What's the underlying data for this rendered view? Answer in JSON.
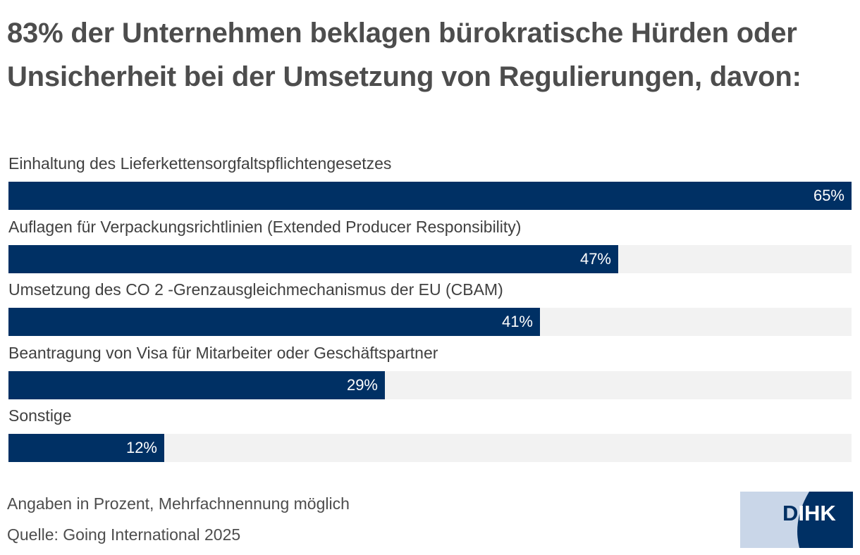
{
  "header": {
    "title": "83% der Unternehmen beklagen bürokratische Hürden oder Unsicherheit bei der Umsetzung von Regulierungen, davon:"
  },
  "chart_data": {
    "type": "bar",
    "orientation": "horizontal",
    "title": "83% der Unternehmen beklagen bürokratische Hürden oder Unsicherheit bei der Umsetzung von Regulierungen, davon:",
    "xlabel": "",
    "ylabel": "",
    "unit": "%",
    "xlim": [
      0,
      65
    ],
    "grid": false,
    "categories": [
      "Einhaltung des Lieferkettensorgfaltspflichtengesetzes",
      "Auflagen für Verpackungsrichtlinien (Extended Producer Responsibility)",
      "Umsetzung des CO 2 -Grenzausgleichmechanismus der EU (CBAM)",
      "Beantragung von Visa für Mitarbeiter oder Geschäftspartner",
      "Sonstige"
    ],
    "values": [
      65,
      47,
      41,
      29,
      12
    ],
    "value_labels": [
      "65%",
      "47%",
      "41%",
      "29%",
      "12%"
    ],
    "colors": {
      "bar": "#003064",
      "track": "#f2f2f2",
      "value_text": "#ffffff"
    }
  },
  "footer": {
    "note": "Angaben in Prozent, Mehrfachnennung möglich",
    "source": "Quelle: Going International 2025",
    "logo_text": "DIHK"
  },
  "colors": {
    "logo_light": "#c9d6e8",
    "logo_dark": "#003064"
  }
}
